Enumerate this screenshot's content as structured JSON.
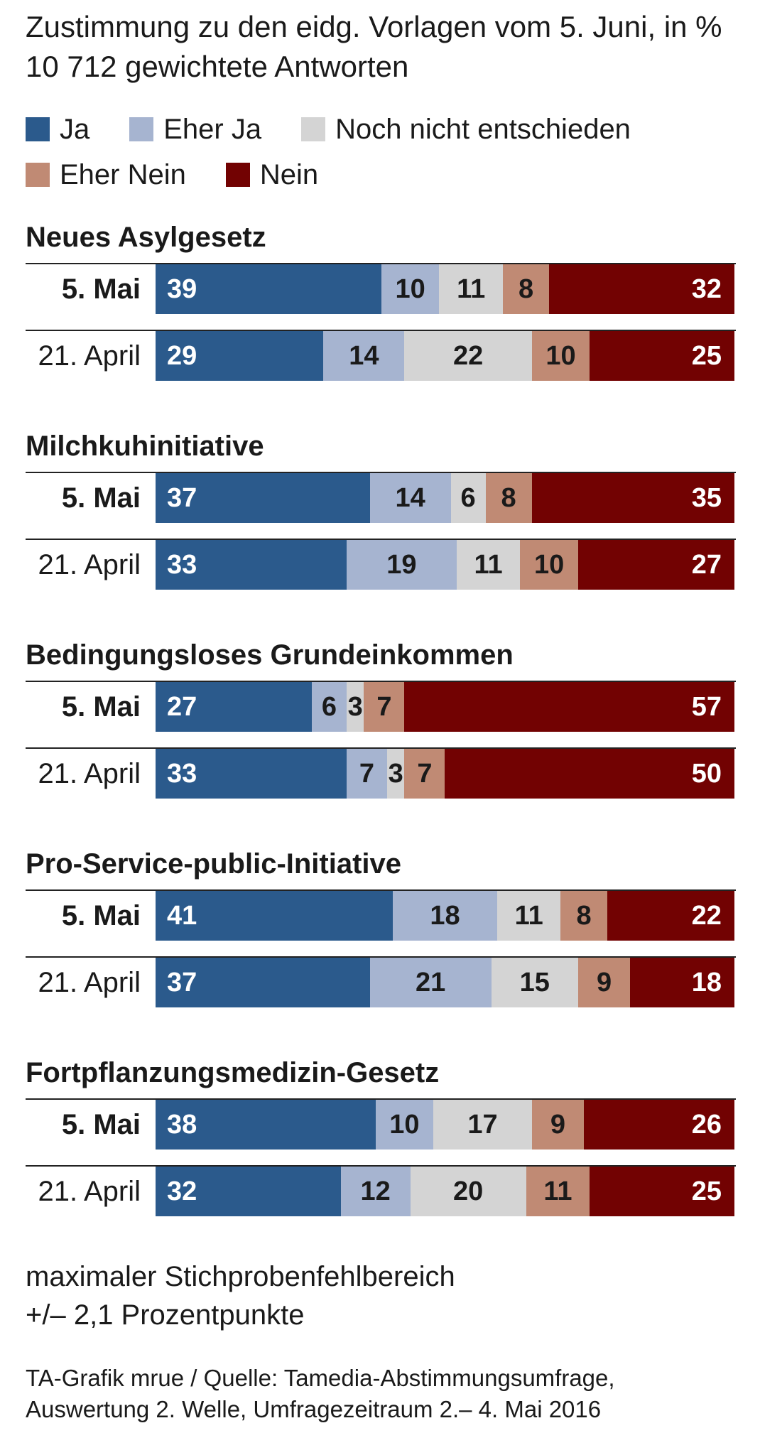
{
  "title": {
    "line1": "Zustimmung zu den eidg. Vorlagen vom 5. Juni, in %",
    "line2": "10 712 gewichtete Antworten"
  },
  "legend": [
    {
      "label": "Ja",
      "color": "#2b5a8c"
    },
    {
      "label": "Eher Ja",
      "color": "#a6b4d0"
    },
    {
      "label": "Noch nicht entschieden",
      "color": "#d4d4d4"
    },
    {
      "label": "Eher Nein",
      "color": "#c08a74"
    },
    {
      "label": "Nein",
      "color": "#720202"
    }
  ],
  "chart_data": {
    "type": "bar",
    "stacked": true,
    "horizontal": true,
    "unit": "%",
    "series": [
      {
        "name": "Ja",
        "color": "#2b5a8c"
      },
      {
        "name": "Eher Ja",
        "color": "#a6b4d0"
      },
      {
        "name": "Noch nicht entschieden",
        "color": "#d4d4d4"
      },
      {
        "name": "Eher Nein",
        "color": "#c08a74"
      },
      {
        "name": "Nein",
        "color": "#720202"
      }
    ],
    "groups": [
      {
        "title": "Neues Asylgesetz",
        "rows": [
          {
            "label": "5. Mai",
            "values": [
              39,
              10,
              11,
              8,
              32
            ]
          },
          {
            "label": "21. April",
            "values": [
              29,
              14,
              22,
              10,
              25
            ]
          }
        ]
      },
      {
        "title": "Milchkuhinitiative",
        "rows": [
          {
            "label": "5. Mai",
            "values": [
              37,
              14,
              6,
              8,
              35
            ]
          },
          {
            "label": "21. April",
            "values": [
              33,
              19,
              11,
              10,
              27
            ]
          }
        ]
      },
      {
        "title": "Bedingungsloses Grundeinkommen",
        "rows": [
          {
            "label": "5. Mai",
            "values": [
              27,
              6,
              3,
              7,
              57
            ]
          },
          {
            "label": "21. April",
            "values": [
              33,
              7,
              3,
              7,
              50
            ]
          }
        ]
      },
      {
        "title": "Pro-Service-public-Initiative",
        "rows": [
          {
            "label": "5. Mai",
            "values": [
              41,
              18,
              11,
              8,
              22
            ]
          },
          {
            "label": "21. April",
            "values": [
              37,
              21,
              15,
              9,
              18
            ]
          }
        ]
      },
      {
        "title": "Fortpflanzungsmedizin-Gesetz",
        "rows": [
          {
            "label": "5. Mai",
            "values": [
              38,
              10,
              17,
              9,
              26
            ]
          },
          {
            "label": "21. April",
            "values": [
              32,
              12,
              20,
              11,
              25
            ]
          }
        ]
      }
    ]
  },
  "note": {
    "line1": "maximaler Stichprobenfehlbereich",
    "line2": "+/– 2,1 Prozentpunkte"
  },
  "source": {
    "line1": "TA-Grafik mrue / Quelle: Tamedia-Abstimmungsumfrage,",
    "line2": "Auswertung 2. Welle, Umfragezeitraum 2.– 4. Mai 2016"
  }
}
